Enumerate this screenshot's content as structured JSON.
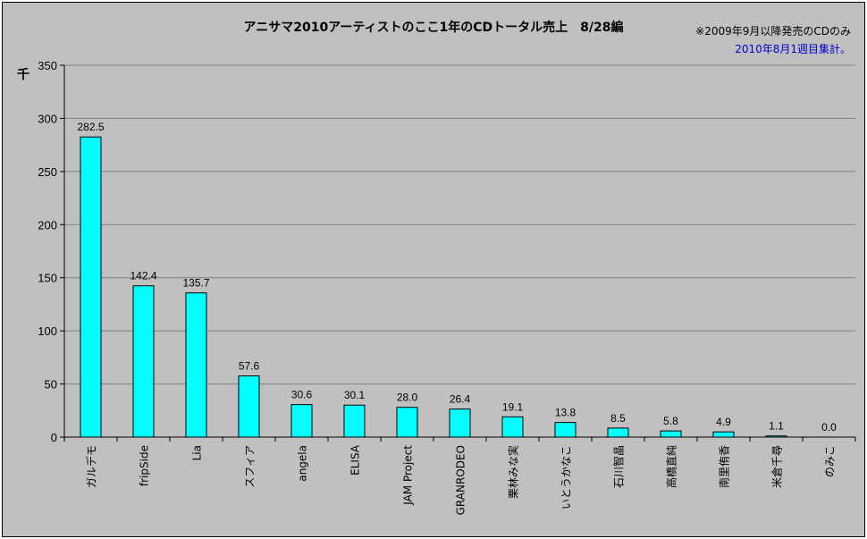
{
  "chart_data": {
    "type": "bar",
    "title": "アニサマ2010アーティストのここ1年のCDトータル売上　8/28編",
    "notes": [
      "※2009年9月以降発売のCDのみ",
      "2010年8月1週目集計。"
    ],
    "unit_label": "千",
    "ylim": [
      0,
      350
    ],
    "yticks": [
      0,
      50,
      100,
      150,
      200,
      250,
      300,
      350
    ],
    "grid": true,
    "legend": "none",
    "bar_color": "#00ffff",
    "note2_color": "#0000cc",
    "categories": [
      "ガルデモ",
      "fripSide",
      "Lia",
      "スフィア",
      "angela",
      "ELISA",
      "JAM Project",
      "GRANRODEO",
      "栗林みな実",
      "いとうかなこ",
      "石川智晶",
      "高橋直純",
      "南里侑香",
      "米倉千尋",
      "のみこ"
    ],
    "values": [
      282.5,
      142.4,
      135.7,
      57.6,
      30.6,
      30.1,
      28.0,
      26.4,
      19.1,
      13.8,
      8.5,
      5.8,
      4.9,
      1.1,
      0.0
    ],
    "value_labels": [
      "282.5",
      "142.4",
      "135.7",
      "57.6",
      "30.6",
      "30.1",
      "28.0",
      "26.4",
      "19.1",
      "13.8",
      "8.5",
      "5.8",
      "4.9",
      "1.1",
      "0.0"
    ]
  }
}
